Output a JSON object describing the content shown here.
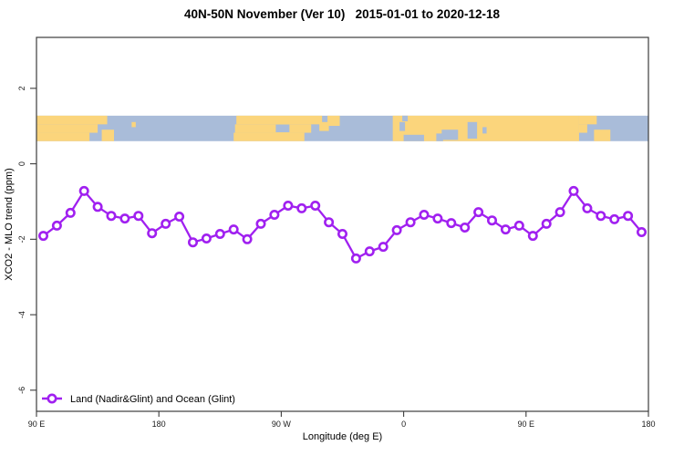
{
  "title": "40N-50N November (Ver 10)   2015-01-01 to 2020-12-18",
  "chart_data": {
    "type": "line",
    "title": "40N-50N November (Ver 10)   2015-01-01 to 2020-12-18",
    "xlabel": "Longitude (deg E)",
    "ylabel": "XCO2 - MLO trend (ppm)",
    "xlim": [
      90,
      540
    ],
    "ylim": [
      -6.56,
      3.35
    ],
    "grid": false,
    "x_ticks": [
      {
        "value": 90,
        "label": "90 E"
      },
      {
        "value": 180,
        "label": "180"
      },
      {
        "value": 270,
        "label": "90 W"
      },
      {
        "value": 360,
        "label": "0"
      },
      {
        "value": 450,
        "label": "90 E"
      },
      {
        "value": 540,
        "label": "180"
      }
    ],
    "y_ticks": [
      {
        "value": 2,
        "label": "2"
      },
      {
        "value": 0,
        "label": "0"
      },
      {
        "value": -2,
        "label": "-2"
      },
      {
        "value": -4,
        "label": "-4"
      },
      {
        "value": -6,
        "label": "-6"
      }
    ],
    "series": [
      {
        "name": "Land (Nadir&Glint) and Ocean (Glint)",
        "color": "#A020F0",
        "marker": "open-circle",
        "x": [
          95,
          105,
          115,
          125,
          135,
          145,
          155,
          165,
          175,
          185,
          195,
          205,
          215,
          225,
          235,
          245,
          255,
          265,
          275,
          285,
          295,
          305,
          315,
          325,
          335,
          345,
          355,
          365,
          375,
          385,
          395,
          405,
          415,
          425,
          435,
          445,
          455,
          465,
          475,
          485,
          495,
          505,
          515,
          525,
          535
        ],
        "values": [
          -1.91,
          -1.64,
          -1.3,
          -0.72,
          -1.14,
          -1.38,
          -1.45,
          -1.38,
          -1.84,
          -1.59,
          -1.4,
          -2.08,
          -1.98,
          -1.86,
          -1.74,
          -2.0,
          -1.59,
          -1.35,
          -1.11,
          -1.18,
          -1.11,
          -1.55,
          -1.86,
          -2.51,
          -2.32,
          -2.2,
          -1.76,
          -1.55,
          -1.35,
          -1.45,
          -1.57,
          -1.69,
          -1.28,
          -1.5,
          -1.74,
          -1.64,
          -1.91,
          -1.59,
          -1.28,
          -0.72,
          -1.18,
          -1.38,
          -1.47,
          -1.38,
          -1.81
        ]
      }
    ],
    "legend": {
      "label": "Land (Nadir&Glint) and Ocean (Glint)",
      "position": "bottom-left"
    },
    "map_band": {
      "y_range": [
        0.6,
        1.275
      ],
      "ocean_color": "#A9BCD9",
      "land_color": "#FBD57C",
      "land": [
        [
          90,
          142,
          0,
          0.34
        ],
        [
          90,
          135,
          0.34,
          0.67
        ],
        [
          90,
          129,
          0.67,
          1
        ],
        [
          138,
          147,
          0.55,
          1
        ],
        [
          160,
          163,
          0.25,
          0.45
        ],
        [
          237,
          300,
          0,
          0.34
        ],
        [
          236,
          292,
          0.34,
          0.67
        ],
        [
          235,
          287,
          0.67,
          1
        ],
        [
          298,
          305,
          0.25,
          0.6
        ],
        [
          304,
          313,
          0,
          0.4
        ],
        [
          352,
          489,
          0,
          1
        ],
        [
          489,
          502,
          0,
          0.34
        ],
        [
          489,
          495,
          0.34,
          0.67
        ],
        [
          500,
          512,
          0.55,
          1
        ]
      ],
      "water_patches": [
        [
          266,
          276,
          0.35,
          0.65
        ],
        [
          357,
          361,
          0.25,
          0.6
        ],
        [
          359,
          363,
          0,
          0.22
        ],
        [
          360,
          375,
          0.75,
          1
        ],
        [
          384,
          389,
          0.7,
          1
        ],
        [
          388,
          400,
          0.55,
          0.95
        ],
        [
          407,
          414,
          0.25,
          0.9
        ],
        [
          418,
          421,
          0.45,
          0.7
        ]
      ]
    }
  }
}
